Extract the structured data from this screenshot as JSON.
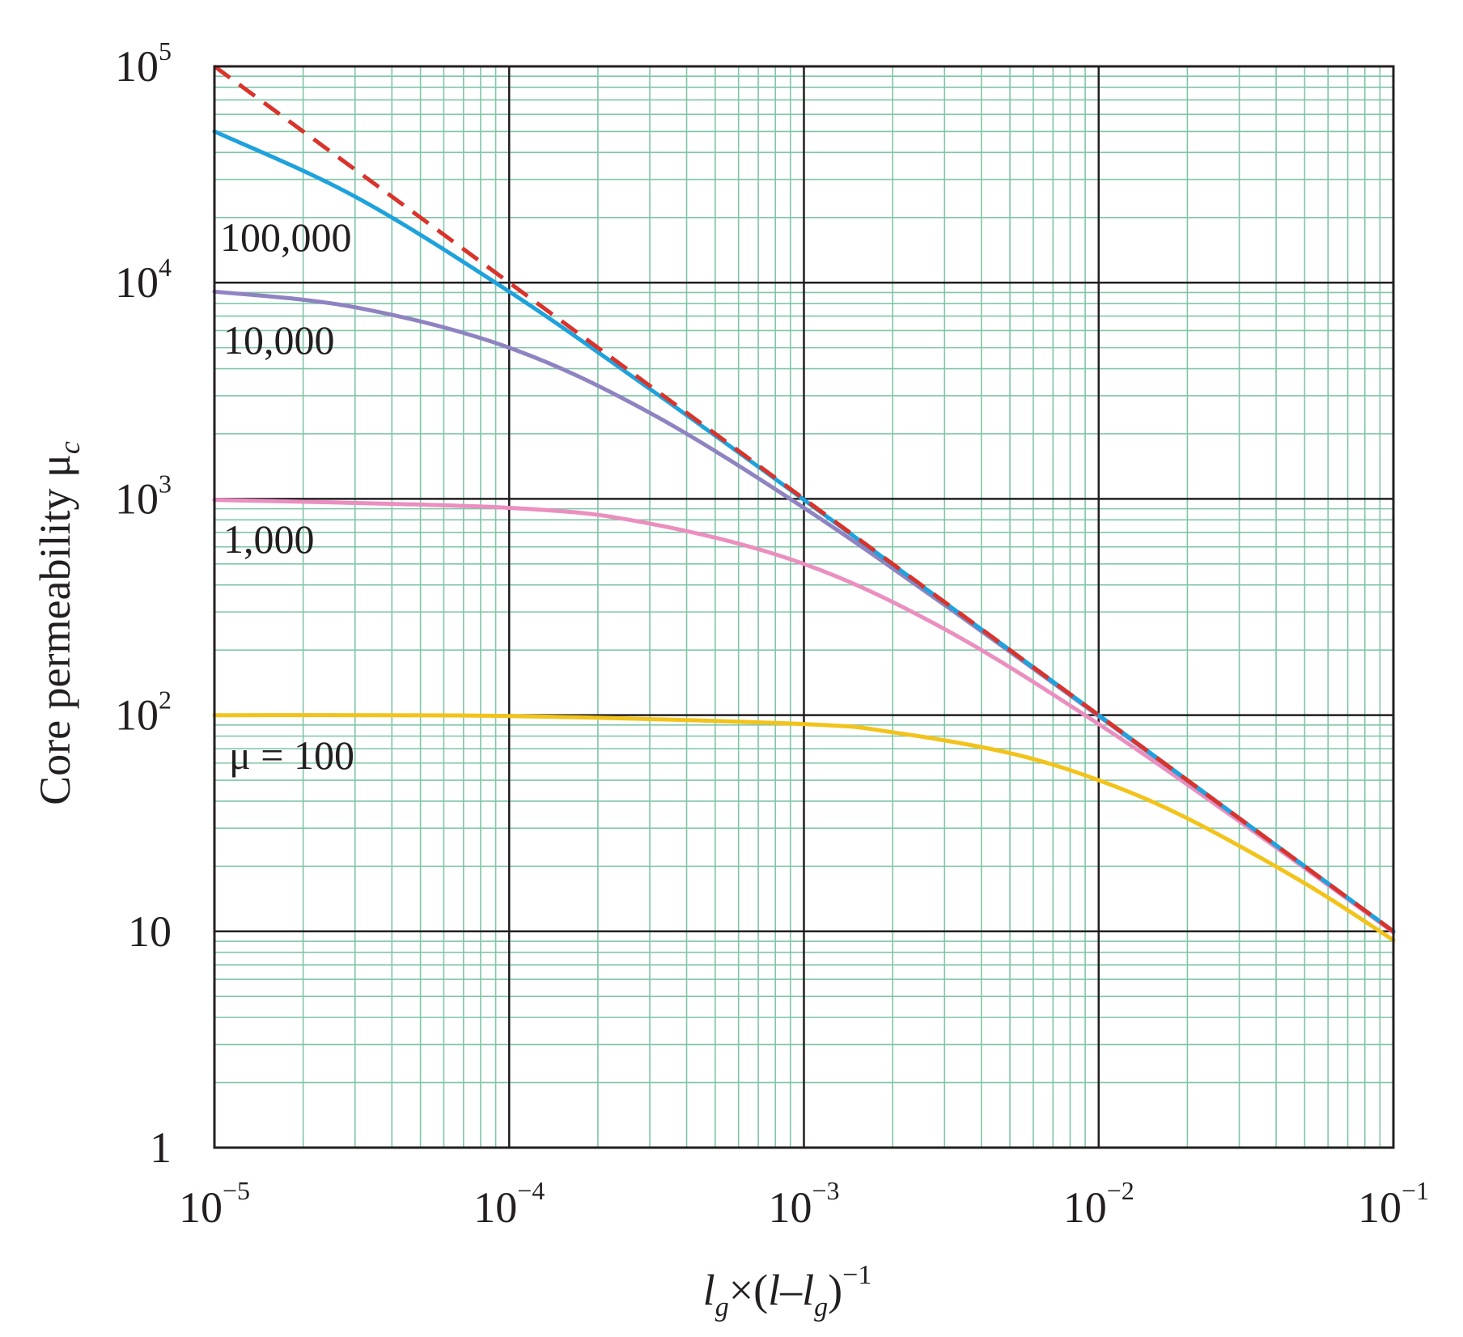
{
  "chart_data": {
    "type": "line",
    "x_scale": "log",
    "y_scale": "log",
    "xlim": [
      1e-05,
      0.1
    ],
    "ylim": [
      1,
      100000
    ],
    "grid": true,
    "xlabel": {
      "l1": "l",
      "sub1": "g",
      "mid": "×(",
      "l2": "l",
      "dash": "–",
      "l3": "l",
      "sub2": "g",
      "close": ")",
      "sup": "−1"
    },
    "ylabel": {
      "main": "Core permeability μ",
      "sub": "c"
    },
    "x_ticks": [
      {
        "value": 1e-05,
        "base": "10",
        "exp": "−5"
      },
      {
        "value": 0.0001,
        "base": "10",
        "exp": "−4"
      },
      {
        "value": 0.001,
        "base": "10",
        "exp": "−3"
      },
      {
        "value": 0.01,
        "base": "10",
        "exp": "−2"
      },
      {
        "value": 0.1,
        "base": "10",
        "exp": "−1"
      }
    ],
    "y_ticks": [
      {
        "value": 1,
        "base": "1",
        "exp": ""
      },
      {
        "value": 10,
        "base": "10",
        "exp": ""
      },
      {
        "value": 100,
        "base": "10",
        "exp": "2"
      },
      {
        "value": 1000,
        "base": "10",
        "exp": "3"
      },
      {
        "value": 10000,
        "base": "10",
        "exp": "4"
      },
      {
        "value": 100000,
        "base": "10",
        "exp": "5"
      }
    ],
    "series": [
      {
        "mu": 100,
        "label": "μ  = 100",
        "color": "#f2c31b",
        "x": [
          1e-05,
          0.0001,
          0.001,
          0.002,
          0.005,
          0.01,
          0.02,
          0.05,
          0.1
        ],
        "y": [
          99.9,
          99.0,
          90.9,
          83.3,
          66.7,
          50.0,
          33.3,
          16.7,
          9.1
        ]
      },
      {
        "mu": 1000,
        "label": "1,000",
        "color": "#ea8fbf",
        "x": [
          1e-05,
          0.0001,
          0.0003,
          0.001,
          0.003,
          0.01,
          0.03,
          0.1
        ],
        "y": [
          990,
          909,
          769,
          500,
          250,
          90.9,
          32.3,
          9.9
        ]
      },
      {
        "mu": 10000,
        "label": "10,000",
        "color": "#8f83c2",
        "x": [
          1e-05,
          3e-05,
          0.0001,
          0.0003,
          0.001,
          0.003,
          0.01,
          0.1
        ],
        "y": [
          9091,
          7692,
          5000,
          2500,
          909,
          323,
          99,
          10
        ]
      },
      {
        "mu": 100000,
        "label": "100,000",
        "color": "#1fa2dc",
        "x": [
          1e-05,
          3e-05,
          0.0001,
          0.0003,
          0.001,
          0.01,
          0.1
        ],
        "y": [
          50000,
          25000,
          9091,
          3226,
          990,
          100,
          10
        ]
      }
    ],
    "limit": {
      "style": "dashed",
      "color": "#d9332b",
      "x": [
        1e-05,
        0.1
      ],
      "y": [
        100000,
        10
      ]
    }
  }
}
